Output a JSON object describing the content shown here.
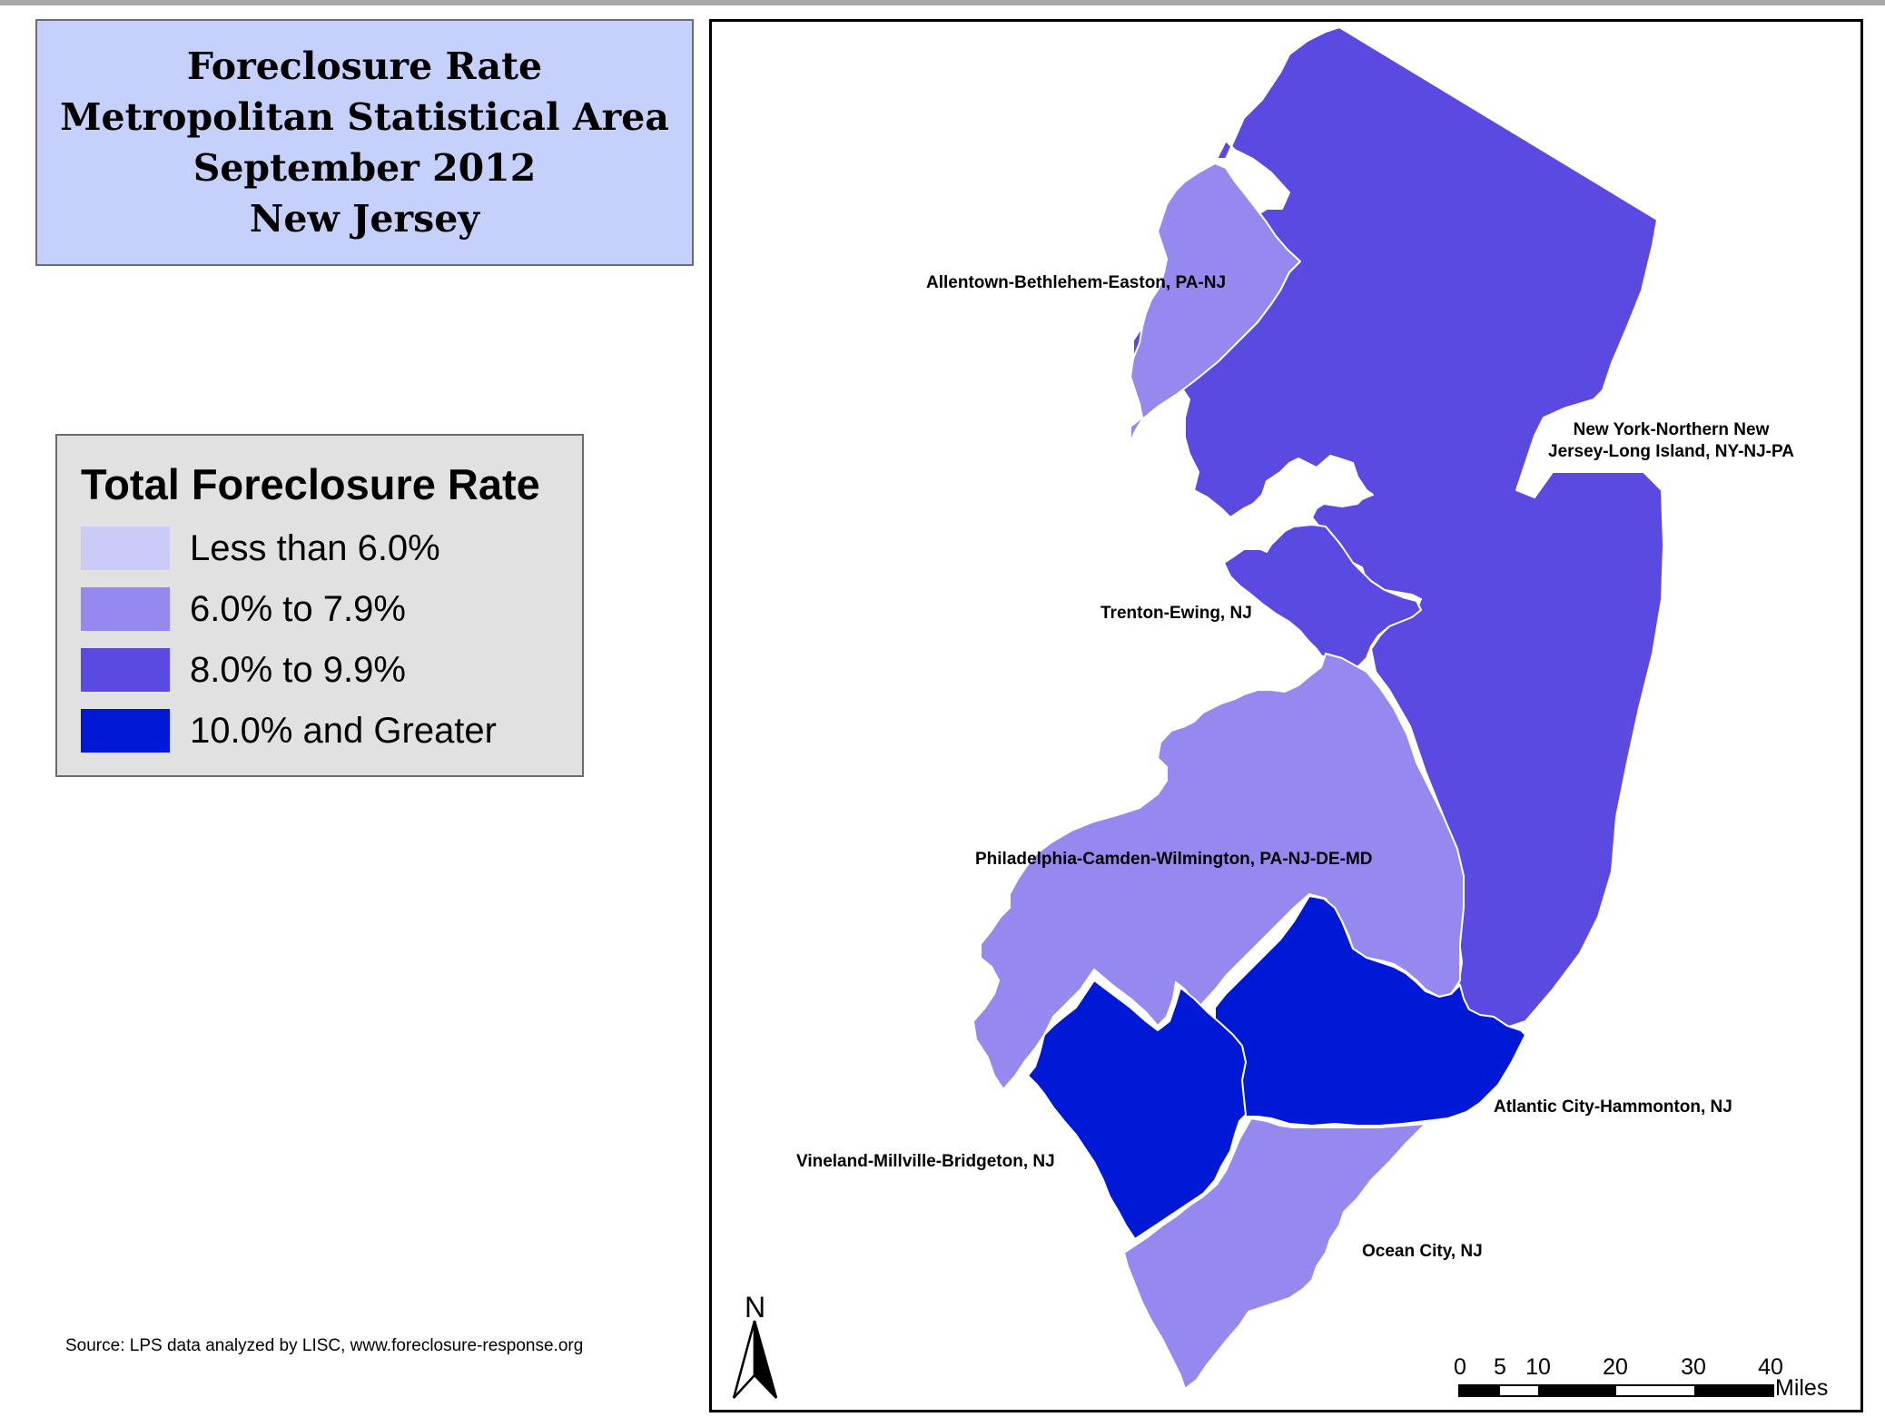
{
  "title": {
    "lines": [
      "Foreclosure Rate",
      "Metropolitan Statistical Area",
      "September 2012",
      "New Jersey"
    ]
  },
  "legend": {
    "title": "Total Foreclosure Rate",
    "items": [
      {
        "label": "Less than 6.0%",
        "color": "#cbcbf7"
      },
      {
        "label": "6.0% to 7.9%",
        "color": "#9589f0"
      },
      {
        "label": "8.0% to 9.9%",
        "color": "#5b4ae1"
      },
      {
        "label": "10.0% and Greater",
        "color": "#0019d6"
      }
    ]
  },
  "regions": {
    "allentown": {
      "label": "Allentown-Bethlehem-Easton, PA-NJ",
      "class": "6.0% to 7.9%"
    },
    "new_york": {
      "label_line1": "New York-Northern New",
      "label_line2": "Jersey-Long Island, NY-NJ-PA",
      "class": "8.0% to 9.9%"
    },
    "trenton": {
      "label": "Trenton-Ewing, NJ",
      "class": "8.0% to 9.9%"
    },
    "philadelphia": {
      "label": "Philadelphia-Camden-Wilmington, PA-NJ-DE-MD",
      "class": "6.0% to 7.9%"
    },
    "atlantic_city": {
      "label": "Atlantic City-Hammonton, NJ",
      "class": "10.0% and Greater"
    },
    "vineland": {
      "label": "Vineland-Millville-Bridgeton, NJ",
      "class": "10.0% and Greater"
    },
    "ocean_city": {
      "label": "Ocean City, NJ",
      "class": "6.0% to 7.9%"
    }
  },
  "north_arrow": {
    "letter": "N"
  },
  "scale_bar": {
    "ticks": [
      "0",
      "5",
      "10",
      "20",
      "30",
      "40"
    ],
    "units": "Miles"
  },
  "source": "Source: LPS data analyzed by LISC, www.foreclosure-response.org"
}
